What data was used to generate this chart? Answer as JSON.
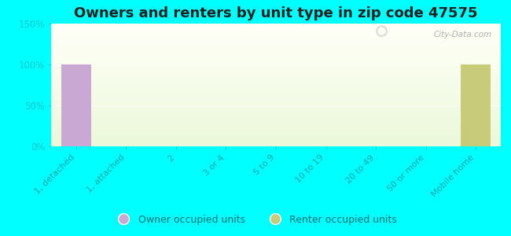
{
  "title": "Owners and renters by unit type in zip code 47575",
  "categories": [
    "1, detached",
    "1, attached",
    "2",
    "3 or 4",
    "5 to 9",
    "10 to 19",
    "20 to 49",
    "50 or more",
    "Mobile home"
  ],
  "owner_values": [
    100,
    0,
    0,
    0,
    0,
    0,
    0,
    0,
    0
  ],
  "renter_values": [
    0,
    0,
    0,
    0,
    0,
    0,
    0,
    0,
    100
  ],
  "owner_color": "#c9a8d4",
  "renter_color": "#c8cc7a",
  "background_color": "#00ffff",
  "ylim": [
    0,
    150
  ],
  "yticks": [
    0,
    50,
    100,
    150
  ],
  "ytick_labels": [
    "0%",
    "50%",
    "100%",
    "150%"
  ],
  "title_fontsize": 13,
  "watermark": "City-Data.com",
  "legend_owner": "Owner occupied units",
  "legend_renter": "Renter occupied units",
  "bar_width": 0.6,
  "tick_color": "#00cccc",
  "axis_label_color": "#00aaaa"
}
